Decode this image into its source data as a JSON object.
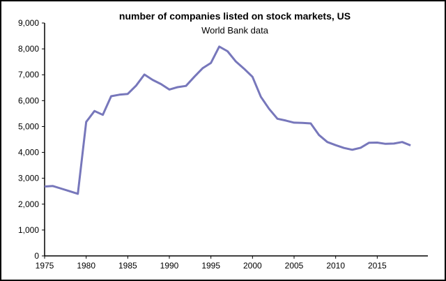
{
  "chart_data": {
    "type": "line",
    "title": "number of companies listed on stock markets, US",
    "subtitle": "World Bank data",
    "xlabel": "",
    "ylabel": "",
    "xlim": [
      1975,
      2020
    ],
    "ylim": [
      0,
      9000
    ],
    "grid": false,
    "line_color": "#7777bb",
    "x_ticks": [
      1975,
      1980,
      1985,
      1990,
      1995,
      2000,
      2005,
      2010,
      2015
    ],
    "x_tick_labels": [
      "1975",
      "1980",
      "1985",
      "1990",
      "1995",
      "2000",
      "2005",
      "2010",
      "2015"
    ],
    "y_ticks": [
      0,
      1000,
      2000,
      3000,
      4000,
      5000,
      6000,
      7000,
      8000,
      9000
    ],
    "y_tick_labels": [
      "0",
      "1,000",
      "2,000",
      "3,000",
      "4,000",
      "5,000",
      "6,000",
      "7,000",
      "8,000",
      "9,000"
    ],
    "x": [
      1975,
      1976,
      1977,
      1978,
      1979,
      1980,
      1981,
      1982,
      1983,
      1984,
      1985,
      1986,
      1987,
      1988,
      1989,
      1990,
      1991,
      1992,
      1993,
      1994,
      1995,
      1996,
      1997,
      1998,
      1999,
      2000,
      2001,
      2002,
      2003,
      2004,
      2005,
      2006,
      2007,
      2008,
      2009,
      2010,
      2011,
      2012,
      2013,
      2014,
      2015,
      2016,
      2017,
      2018,
      2019
    ],
    "values": [
      2680,
      2700,
      2600,
      2500,
      2400,
      5180,
      5600,
      5450,
      6170,
      6230,
      6260,
      6580,
      7010,
      6800,
      6640,
      6430,
      6520,
      6570,
      6920,
      7250,
      7460,
      8090,
      7910,
      7510,
      7230,
      6920,
      6150,
      5680,
      5300,
      5230,
      5150,
      5140,
      5120,
      4670,
      4400,
      4280,
      4170,
      4100,
      4180,
      4370,
      4380,
      4330,
      4340,
      4400,
      4270
    ]
  }
}
